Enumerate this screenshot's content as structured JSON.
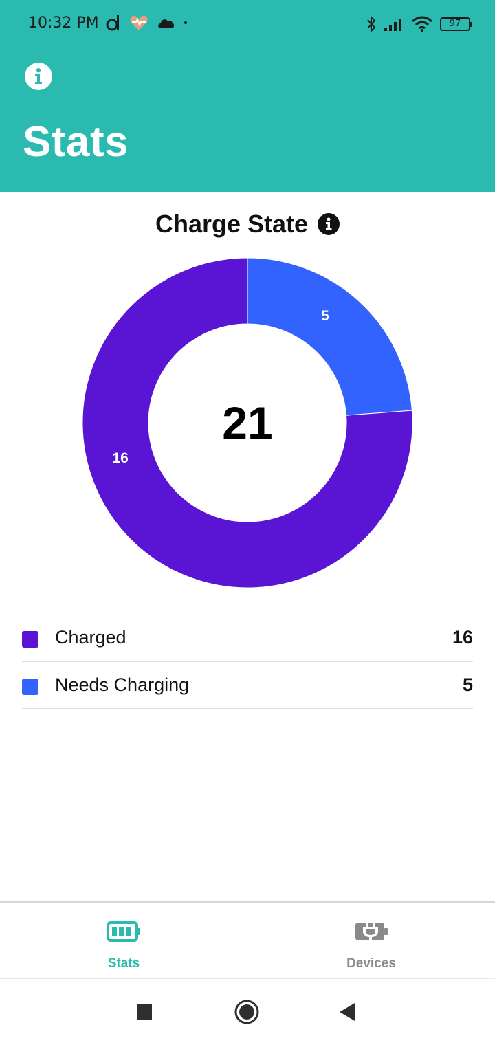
{
  "status_bar": {
    "time": "10:32 PM",
    "battery": "97"
  },
  "header": {
    "title": "Stats",
    "info_icon": "info-icon"
  },
  "colors": {
    "header": "#2bbaaf",
    "charged": "#5a14d4",
    "needs_charging": "#3263ff",
    "active_tab": "#2bbaaf",
    "inactive_tab": "#8a8a8a"
  },
  "chart_data": {
    "type": "pie",
    "title": "Charge State",
    "center_total": "21",
    "donut": true,
    "series": [
      {
        "name": "Charged",
        "value": 16,
        "color": "#5a14d4"
      },
      {
        "name": "Needs Charging",
        "value": 5,
        "color": "#3263ff"
      }
    ]
  },
  "legend": [
    {
      "label": "Charged",
      "value": "16",
      "color": "#5a14d4"
    },
    {
      "label": "Needs Charging",
      "value": "5",
      "color": "#3263ff"
    }
  ],
  "bottom_nav": {
    "tabs": [
      {
        "label": "Stats",
        "icon": "battery-icon",
        "active": true
      },
      {
        "label": "Devices",
        "icon": "plug-icon",
        "active": false
      }
    ]
  },
  "system_nav": {
    "recents": "recents-icon",
    "home": "home-icon",
    "back": "back-icon"
  }
}
